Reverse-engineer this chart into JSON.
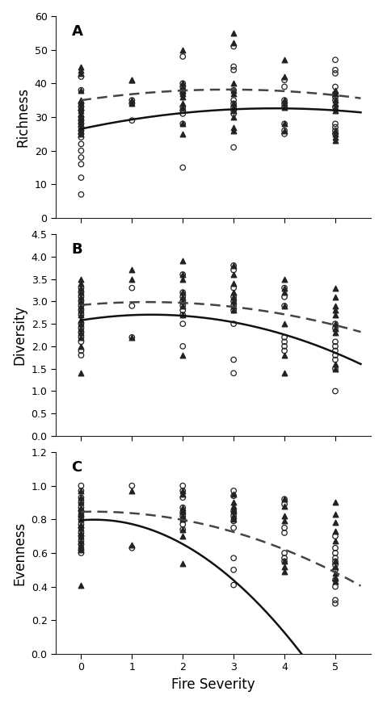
{
  "panels": [
    "A",
    "B",
    "C"
  ],
  "xlim": [
    -0.5,
    5.7
  ],
  "xticks": [
    0,
    1,
    2,
    3,
    4,
    5
  ],
  "xlabel": "Fire Severity",
  "panel_A": {
    "ylabel": "Richness",
    "ylim": [
      0,
      60
    ],
    "yticks": [
      0,
      10,
      20,
      30,
      40,
      50,
      60
    ],
    "circles": [
      [
        0,
        42
      ],
      [
        0,
        38
      ],
      [
        0,
        34
      ],
      [
        0,
        33
      ],
      [
        0,
        32
      ],
      [
        0,
        30
      ],
      [
        0,
        29
      ],
      [
        0,
        28
      ],
      [
        0,
        27
      ],
      [
        0,
        26
      ],
      [
        0,
        25
      ],
      [
        0,
        24
      ],
      [
        0,
        22
      ],
      [
        0,
        20
      ],
      [
        0,
        18
      ],
      [
        0,
        16
      ],
      [
        0,
        12
      ],
      [
        0,
        7
      ],
      [
        1,
        35
      ],
      [
        1,
        34
      ],
      [
        1,
        29
      ],
      [
        2,
        48
      ],
      [
        2,
        40
      ],
      [
        2,
        39
      ],
      [
        2,
        38
      ],
      [
        2,
        37
      ],
      [
        2,
        33
      ],
      [
        2,
        32
      ],
      [
        2,
        31
      ],
      [
        2,
        28
      ],
      [
        2,
        15
      ],
      [
        3,
        51
      ],
      [
        3,
        45
      ],
      [
        3,
        44
      ],
      [
        3,
        38
      ],
      [
        3,
        35
      ],
      [
        3,
        34
      ],
      [
        3,
        33
      ],
      [
        3,
        32
      ],
      [
        3,
        31
      ],
      [
        3,
        21
      ],
      [
        4,
        41
      ],
      [
        4,
        39
      ],
      [
        4,
        35
      ],
      [
        4,
        34
      ],
      [
        4,
        33
      ],
      [
        4,
        28
      ],
      [
        4,
        26
      ],
      [
        4,
        25
      ],
      [
        5,
        47
      ],
      [
        5,
        44
      ],
      [
        5,
        43
      ],
      [
        5,
        39
      ],
      [
        5,
        37
      ],
      [
        5,
        36
      ],
      [
        5,
        35
      ],
      [
        5,
        33
      ],
      [
        5,
        28
      ],
      [
        5,
        27
      ],
      [
        5,
        26
      ],
      [
        5,
        25
      ]
    ],
    "triangles": [
      [
        0,
        45
      ],
      [
        0,
        44
      ],
      [
        0,
        43
      ],
      [
        0,
        38
      ],
      [
        0,
        35
      ],
      [
        0,
        34
      ],
      [
        0,
        33
      ],
      [
        0,
        33
      ],
      [
        0,
        32
      ],
      [
        0,
        31
      ],
      [
        0,
        30
      ],
      [
        0,
        29
      ],
      [
        0,
        28
      ],
      [
        0,
        27
      ],
      [
        0,
        26
      ],
      [
        0,
        25
      ],
      [
        1,
        41
      ],
      [
        1,
        41
      ],
      [
        1,
        35
      ],
      [
        1,
        34
      ],
      [
        2,
        50
      ],
      [
        2,
        40
      ],
      [
        2,
        39
      ],
      [
        2,
        38
      ],
      [
        2,
        37
      ],
      [
        2,
        36
      ],
      [
        2,
        34
      ],
      [
        2,
        33
      ],
      [
        2,
        28
      ],
      [
        2,
        25
      ],
      [
        3,
        55
      ],
      [
        3,
        52
      ],
      [
        3,
        40
      ],
      [
        3,
        38
      ],
      [
        3,
        37
      ],
      [
        3,
        34
      ],
      [
        3,
        33
      ],
      [
        3,
        32
      ],
      [
        3,
        30
      ],
      [
        3,
        27
      ],
      [
        3,
        26
      ],
      [
        4,
        47
      ],
      [
        4,
        42
      ],
      [
        4,
        35
      ],
      [
        4,
        34
      ],
      [
        4,
        33
      ],
      [
        4,
        28
      ],
      [
        4,
        26
      ],
      [
        5,
        38
      ],
      [
        5,
        37
      ],
      [
        5,
        35
      ],
      [
        5,
        34
      ],
      [
        5,
        33
      ],
      [
        5,
        32
      ],
      [
        5,
        26
      ],
      [
        5,
        25
      ],
      [
        5,
        24
      ],
      [
        5,
        23
      ]
    ],
    "solid_line": {
      "coeffs": [
        26.5,
        3.2,
        -0.42
      ],
      "x_range": [
        0,
        5.5
      ]
    },
    "dashed_line": {
      "coeffs": [
        35.0,
        2.2,
        -0.38
      ],
      "x_range": [
        0,
        5.5
      ]
    }
  },
  "panel_B": {
    "ylabel": "Diversity",
    "ylim": [
      0,
      4.5
    ],
    "yticks": [
      0,
      0.5,
      1.0,
      1.5,
      2.0,
      2.5,
      3.0,
      3.5,
      4.0,
      4.5
    ],
    "circles": [
      [
        0,
        3.3
      ],
      [
        0,
        3.2
      ],
      [
        0,
        3.1
      ],
      [
        0,
        3.0
      ],
      [
        0,
        2.9
      ],
      [
        0,
        2.8
      ],
      [
        0,
        2.7
      ],
      [
        0,
        2.5
      ],
      [
        0,
        2.4
      ],
      [
        0,
        2.3
      ],
      [
        0,
        2.2
      ],
      [
        0,
        2.1
      ],
      [
        0,
        1.9
      ],
      [
        0,
        1.8
      ],
      [
        1,
        3.3
      ],
      [
        1,
        2.9
      ],
      [
        1,
        2.2
      ],
      [
        2,
        3.6
      ],
      [
        2,
        3.2
      ],
      [
        2,
        3.1
      ],
      [
        2,
        3.0
      ],
      [
        2,
        2.9
      ],
      [
        2,
        2.8
      ],
      [
        2,
        2.7
      ],
      [
        2,
        2.5
      ],
      [
        2,
        2.0
      ],
      [
        3,
        3.8
      ],
      [
        3,
        3.7
      ],
      [
        3,
        3.3
      ],
      [
        3,
        3.1
      ],
      [
        3,
        3.0
      ],
      [
        3,
        2.9
      ],
      [
        3,
        2.8
      ],
      [
        3,
        2.5
      ],
      [
        3,
        1.7
      ],
      [
        3,
        1.4
      ],
      [
        4,
        3.3
      ],
      [
        4,
        3.1
      ],
      [
        4,
        2.9
      ],
      [
        4,
        2.2
      ],
      [
        4,
        2.1
      ],
      [
        4,
        2.0
      ],
      [
        4,
        1.9
      ],
      [
        5,
        2.5
      ],
      [
        5,
        2.4
      ],
      [
        5,
        2.1
      ],
      [
        5,
        2.0
      ],
      [
        5,
        1.9
      ],
      [
        5,
        1.8
      ],
      [
        5,
        1.7
      ],
      [
        5,
        1.5
      ],
      [
        5,
        1.0
      ]
    ],
    "triangles": [
      [
        0,
        3.5
      ],
      [
        0,
        3.4
      ],
      [
        0,
        3.3
      ],
      [
        0,
        3.2
      ],
      [
        0,
        3.1
      ],
      [
        0,
        3.0
      ],
      [
        0,
        2.9
      ],
      [
        0,
        2.8
      ],
      [
        0,
        2.7
      ],
      [
        0,
        2.6
      ],
      [
        0,
        2.5
      ],
      [
        0,
        2.4
      ],
      [
        0,
        2.3
      ],
      [
        0,
        2.2
      ],
      [
        0,
        2.0
      ],
      [
        0,
        1.4
      ],
      [
        1,
        3.7
      ],
      [
        1,
        3.5
      ],
      [
        1,
        2.2
      ],
      [
        2,
        3.9
      ],
      [
        2,
        3.6
      ],
      [
        2,
        3.5
      ],
      [
        2,
        3.2
      ],
      [
        2,
        3.1
      ],
      [
        2,
        3.0
      ],
      [
        2,
        2.9
      ],
      [
        2,
        2.7
      ],
      [
        2,
        1.8
      ],
      [
        3,
        3.8
      ],
      [
        3,
        3.6
      ],
      [
        3,
        3.4
      ],
      [
        3,
        3.2
      ],
      [
        3,
        3.1
      ],
      [
        3,
        3.0
      ],
      [
        3,
        2.9
      ],
      [
        3,
        2.8
      ],
      [
        4,
        3.5
      ],
      [
        4,
        3.3
      ],
      [
        4,
        3.2
      ],
      [
        4,
        2.9
      ],
      [
        4,
        2.5
      ],
      [
        4,
        1.8
      ],
      [
        4,
        1.4
      ],
      [
        5,
        3.3
      ],
      [
        5,
        3.1
      ],
      [
        5,
        2.9
      ],
      [
        5,
        2.8
      ],
      [
        5,
        2.7
      ],
      [
        5,
        2.5
      ],
      [
        5,
        2.4
      ],
      [
        5,
        2.3
      ],
      [
        5,
        1.6
      ],
      [
        5,
        1.5
      ]
    ],
    "solid_line": {
      "coeffs": [
        2.58,
        0.18,
        -0.065
      ],
      "x_range": [
        0,
        5.5
      ]
    },
    "dashed_line": {
      "coeffs": [
        2.92,
        0.1,
        -0.038
      ],
      "x_range": [
        0,
        5.5
      ]
    }
  },
  "panel_C": {
    "ylabel": "Evenness",
    "ylim": [
      0,
      1.2
    ],
    "yticks": [
      0,
      0.2,
      0.4,
      0.6,
      0.8,
      1.0,
      1.2
    ],
    "circles": [
      [
        0,
        1.0
      ],
      [
        0,
        0.97
      ],
      [
        0,
        0.93
      ],
      [
        0,
        0.9
      ],
      [
        0,
        0.87
      ],
      [
        0,
        0.85
      ],
      [
        0,
        0.82
      ],
      [
        0,
        0.8
      ],
      [
        0,
        0.77
      ],
      [
        0,
        0.75
      ],
      [
        0,
        0.72
      ],
      [
        0,
        0.7
      ],
      [
        0,
        0.67
      ],
      [
        0,
        0.65
      ],
      [
        0,
        0.62
      ],
      [
        0,
        0.6
      ],
      [
        1,
        1.0
      ],
      [
        1,
        0.63
      ],
      [
        2,
        1.0
      ],
      [
        2,
        0.97
      ],
      [
        2,
        0.93
      ],
      [
        2,
        0.87
      ],
      [
        2,
        0.84
      ],
      [
        2,
        0.82
      ],
      [
        2,
        0.8
      ],
      [
        2,
        0.77
      ],
      [
        2,
        0.74
      ],
      [
        3,
        0.97
      ],
      [
        3,
        0.94
      ],
      [
        3,
        0.85
      ],
      [
        3,
        0.82
      ],
      [
        3,
        0.79
      ],
      [
        3,
        0.75
      ],
      [
        3,
        0.57
      ],
      [
        3,
        0.5
      ],
      [
        3,
        0.41
      ],
      [
        4,
        0.92
      ],
      [
        4,
        0.89
      ],
      [
        4,
        0.75
      ],
      [
        4,
        0.72
      ],
      [
        4,
        0.6
      ],
      [
        4,
        0.57
      ],
      [
        4,
        0.55
      ],
      [
        5,
        0.7
      ],
      [
        5,
        0.63
      ],
      [
        5,
        0.6
      ],
      [
        5,
        0.57
      ],
      [
        5,
        0.55
      ],
      [
        5,
        0.53
      ],
      [
        5,
        0.5
      ],
      [
        5,
        0.44
      ],
      [
        5,
        0.4
      ],
      [
        5,
        0.32
      ],
      [
        5,
        0.3
      ]
    ],
    "triangles": [
      [
        0,
        0.97
      ],
      [
        0,
        0.93
      ],
      [
        0,
        0.9
      ],
      [
        0,
        0.87
      ],
      [
        0,
        0.85
      ],
      [
        0,
        0.83
      ],
      [
        0,
        0.8
      ],
      [
        0,
        0.77
      ],
      [
        0,
        0.75
      ],
      [
        0,
        0.72
      ],
      [
        0,
        0.7
      ],
      [
        0,
        0.67
      ],
      [
        0,
        0.65
      ],
      [
        0,
        0.63
      ],
      [
        0,
        0.62
      ],
      [
        0,
        0.41
      ],
      [
        1,
        0.97
      ],
      [
        1,
        0.65
      ],
      [
        2,
        0.97
      ],
      [
        2,
        0.95
      ],
      [
        2,
        0.87
      ],
      [
        2,
        0.85
      ],
      [
        2,
        0.82
      ],
      [
        2,
        0.8
      ],
      [
        2,
        0.74
      ],
      [
        2,
        0.7
      ],
      [
        2,
        0.54
      ],
      [
        3,
        0.95
      ],
      [
        3,
        0.9
      ],
      [
        3,
        0.88
      ],
      [
        3,
        0.86
      ],
      [
        3,
        0.85
      ],
      [
        3,
        0.82
      ],
      [
        3,
        0.8
      ],
      [
        4,
        0.92
      ],
      [
        4,
        0.88
      ],
      [
        4,
        0.82
      ],
      [
        4,
        0.79
      ],
      [
        4,
        0.55
      ],
      [
        4,
        0.52
      ],
      [
        4,
        0.49
      ],
      [
        5,
        0.9
      ],
      [
        5,
        0.83
      ],
      [
        5,
        0.78
      ],
      [
        5,
        0.73
      ],
      [
        5,
        0.67
      ],
      [
        5,
        0.55
      ],
      [
        5,
        0.52
      ],
      [
        5,
        0.48
      ],
      [
        5,
        0.45
      ],
      [
        5,
        0.43
      ]
    ],
    "solid_line": {
      "coeffs": [
        0.795,
        0.025,
        -0.048
      ],
      "x_range": [
        0,
        5.5
      ]
    },
    "dashed_line": {
      "coeffs": [
        0.845,
        0.008,
        -0.016
      ],
      "x_range": [
        0,
        5.5
      ]
    }
  },
  "circle_style": {
    "marker": "o",
    "facecolor": "none",
    "edgecolor": "#222222",
    "size": 22,
    "linewidth": 0.9
  },
  "triangle_style": {
    "marker": "^",
    "facecolor": "#222222",
    "edgecolor": "#222222",
    "size": 22
  },
  "solid_color": "#111111",
  "dashed_color": "#444444",
  "line_width": 1.8,
  "background": "#ffffff",
  "label_fontsize": 12,
  "panel_label_fontsize": 13,
  "tick_labelsize": 9
}
